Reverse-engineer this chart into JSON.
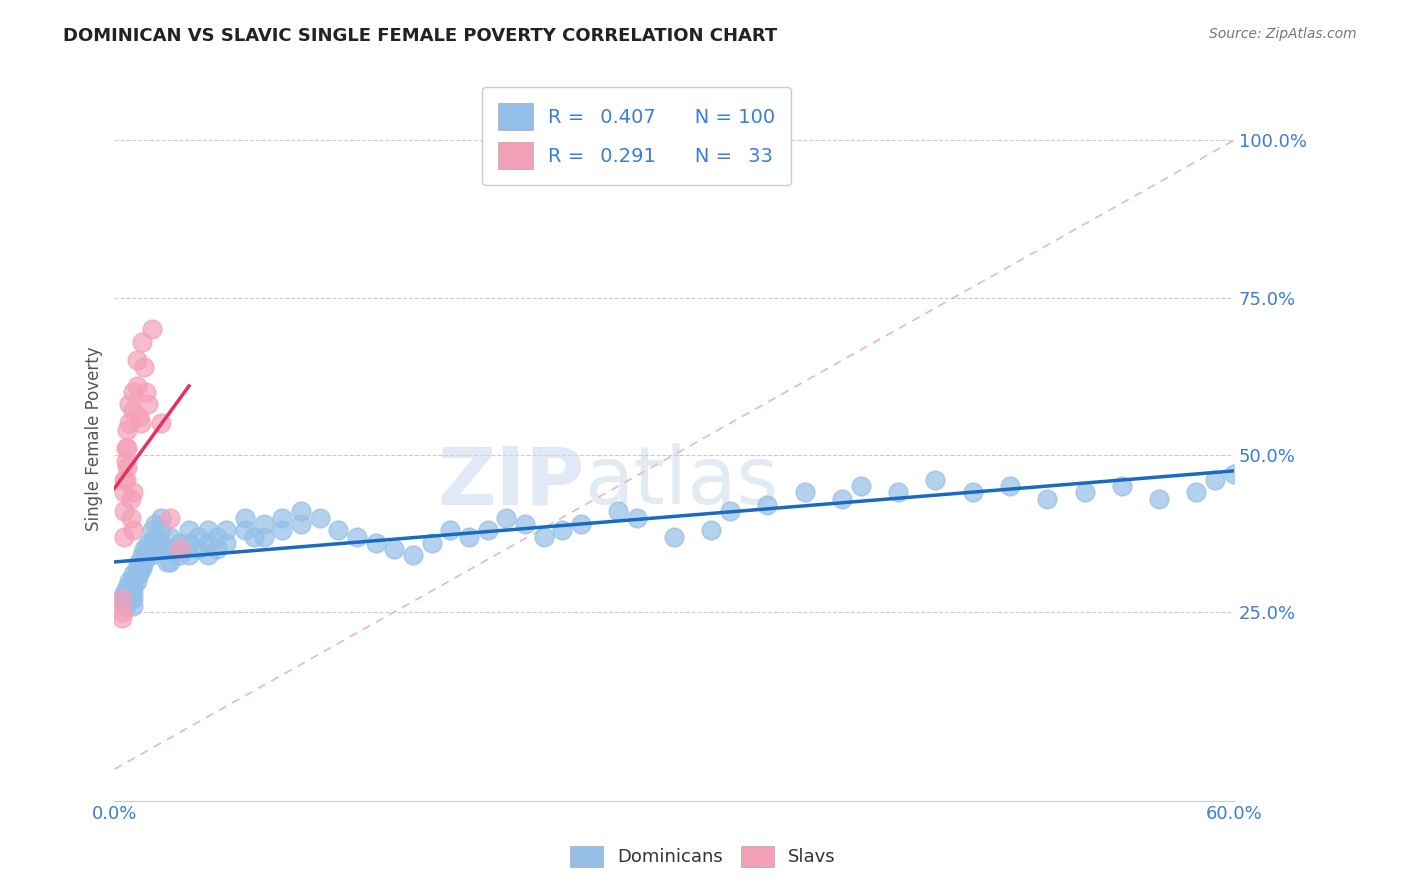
{
  "title": "DOMINICAN VS SLAVIC SINGLE FEMALE POVERTY CORRELATION CHART",
  "source": "Source: ZipAtlas.com",
  "ylabel": "Single Female Poverty",
  "xlim": [
    0.0,
    0.6
  ],
  "ylim": [
    -0.05,
    1.1
  ],
  "ytick_positions": [
    0.25,
    0.5,
    0.75,
    1.0
  ],
  "ytick_labels": [
    "25.0%",
    "50.0%",
    "75.0%",
    "100.0%"
  ],
  "dominican_color": "#94bfe8",
  "slavic_color": "#f4a0b8",
  "dominican_line_color": "#1a6abf",
  "slavic_line_color": "#e83060",
  "diag_line_color": "#ddaaaa",
  "R_dominican": 0.407,
  "N_dominican": 100,
  "R_slavic": 0.291,
  "N_slavic": 33,
  "watermark_zip": "ZIP",
  "watermark_atlas": "atlas",
  "background_color": "#ffffff",
  "dominican_x": [
    0.005,
    0.005,
    0.005,
    0.006,
    0.006,
    0.007,
    0.007,
    0.008,
    0.008,
    0.009,
    0.009,
    0.01,
    0.01,
    0.01,
    0.01,
    0.01,
    0.01,
    0.012,
    0.012,
    0.013,
    0.013,
    0.014,
    0.015,
    0.015,
    0.016,
    0.016,
    0.017,
    0.018,
    0.018,
    0.02,
    0.02,
    0.02,
    0.022,
    0.022,
    0.025,
    0.025,
    0.025,
    0.028,
    0.028,
    0.03,
    0.03,
    0.03,
    0.035,
    0.035,
    0.04,
    0.04,
    0.04,
    0.045,
    0.045,
    0.05,
    0.05,
    0.05,
    0.055,
    0.055,
    0.06,
    0.06,
    0.07,
    0.07,
    0.075,
    0.08,
    0.08,
    0.09,
    0.09,
    0.1,
    0.1,
    0.11,
    0.12,
    0.13,
    0.14,
    0.15,
    0.16,
    0.17,
    0.18,
    0.19,
    0.2,
    0.21,
    0.22,
    0.23,
    0.24,
    0.25,
    0.27,
    0.28,
    0.3,
    0.32,
    0.33,
    0.35,
    0.37,
    0.39,
    0.4,
    0.42,
    0.44,
    0.46,
    0.48,
    0.5,
    0.52,
    0.54,
    0.56,
    0.58,
    0.59,
    0.6
  ],
  "dominican_y": [
    0.28,
    0.27,
    0.26,
    0.28,
    0.26,
    0.29,
    0.27,
    0.3,
    0.28,
    0.29,
    0.27,
    0.31,
    0.3,
    0.29,
    0.28,
    0.27,
    0.26,
    0.32,
    0.3,
    0.33,
    0.31,
    0.32,
    0.34,
    0.32,
    0.35,
    0.33,
    0.34,
    0.36,
    0.34,
    0.38,
    0.36,
    0.34,
    0.39,
    0.37,
    0.4,
    0.38,
    0.36,
    0.35,
    0.33,
    0.37,
    0.35,
    0.33,
    0.36,
    0.34,
    0.38,
    0.36,
    0.34,
    0.37,
    0.35,
    0.38,
    0.36,
    0.34,
    0.37,
    0.35,
    0.38,
    0.36,
    0.4,
    0.38,
    0.37,
    0.39,
    0.37,
    0.4,
    0.38,
    0.41,
    0.39,
    0.4,
    0.38,
    0.37,
    0.36,
    0.35,
    0.34,
    0.36,
    0.38,
    0.37,
    0.38,
    0.4,
    0.39,
    0.37,
    0.38,
    0.39,
    0.41,
    0.4,
    0.37,
    0.38,
    0.41,
    0.42,
    0.44,
    0.43,
    0.45,
    0.44,
    0.46,
    0.44,
    0.45,
    0.43,
    0.44,
    0.45,
    0.43,
    0.44,
    0.46,
    0.47
  ],
  "slavic_x": [
    0.004,
    0.004,
    0.004,
    0.005,
    0.005,
    0.005,
    0.005,
    0.006,
    0.006,
    0.006,
    0.007,
    0.007,
    0.007,
    0.008,
    0.008,
    0.009,
    0.009,
    0.01,
    0.01,
    0.01,
    0.01,
    0.012,
    0.012,
    0.013,
    0.014,
    0.015,
    0.016,
    0.017,
    0.018,
    0.02,
    0.025,
    0.03,
    0.035
  ],
  "slavic_y": [
    0.27,
    0.25,
    0.24,
    0.46,
    0.44,
    0.41,
    0.37,
    0.51,
    0.49,
    0.46,
    0.54,
    0.51,
    0.48,
    0.58,
    0.55,
    0.43,
    0.4,
    0.6,
    0.57,
    0.44,
    0.38,
    0.65,
    0.61,
    0.56,
    0.55,
    0.68,
    0.64,
    0.6,
    0.58,
    0.7,
    0.55,
    0.4,
    0.35
  ]
}
